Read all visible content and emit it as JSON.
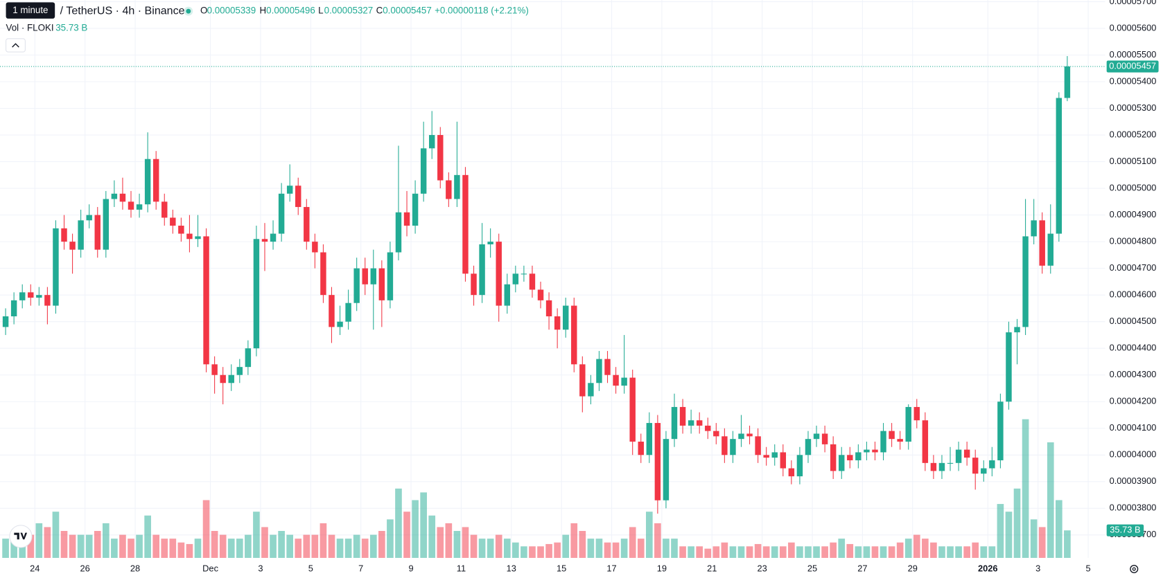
{
  "legend": {
    "tooltip": "1 minute",
    "symbol": "/ TetherUS · 4h · Binance",
    "o_key": "O",
    "o": "0.00005339",
    "h_key": "H",
    "h": "0.00005496",
    "l_key": "L",
    "l": "0.00005327",
    "c_key": "C",
    "c": "0.00005457",
    "change": "+0.00000118 (+2.21%)",
    "vol_title": "Vol · FLOKI",
    "vol": "35.73 B"
  },
  "chart_data": {
    "type": "candlestick",
    "up_color": "#22ab94",
    "down_color": "#f23645",
    "volume_up_color": "rgba(34,171,148,0.5)",
    "volume_down_color": "rgba(242,54,69,0.5)",
    "grid": true,
    "xlim": [
      -0.17,
      132.03
    ],
    "xticks": [
      {
        "value": 4,
        "label": "24"
      },
      {
        "value": 10,
        "label": "26"
      },
      {
        "value": 16,
        "label": "28"
      },
      {
        "value": 25,
        "label": "Dec"
      },
      {
        "value": 31,
        "label": "3"
      },
      {
        "value": 37,
        "label": "5"
      },
      {
        "value": 43,
        "label": "7"
      },
      {
        "value": 49,
        "label": "9"
      },
      {
        "value": 55,
        "label": "11"
      },
      {
        "value": 61,
        "label": "13"
      },
      {
        "value": 67,
        "label": "15"
      },
      {
        "value": 73,
        "label": "17"
      },
      {
        "value": 79,
        "label": "19"
      },
      {
        "value": 85,
        "label": "21"
      },
      {
        "value": 91,
        "label": "23"
      },
      {
        "value": 97,
        "label": "25"
      },
      {
        "value": 103,
        "label": "27"
      },
      {
        "value": 109,
        "label": "29"
      },
      {
        "value": 118,
        "label": "2026"
      },
      {
        "value": 124,
        "label": "3"
      },
      {
        "value": 130,
        "label": "5"
      }
    ],
    "ylim": [
      3.614e-05,
      5.706e-05
    ],
    "yticks": [
      {
        "value": 3.7e-05,
        "label": "0.00003700"
      },
      {
        "value": 3.8e-05,
        "label": "0.00003800"
      },
      {
        "value": 3.9e-05,
        "label": "0.00003900"
      },
      {
        "value": 4e-05,
        "label": "0.00004000"
      },
      {
        "value": 4.1e-05,
        "label": "0.00004100"
      },
      {
        "value": 4.2e-05,
        "label": "0.00004200"
      },
      {
        "value": 4.3e-05,
        "label": "0.00004300"
      },
      {
        "value": 4.4e-05,
        "label": "0.00004400"
      },
      {
        "value": 4.5e-05,
        "label": "0.00004500"
      },
      {
        "value": 4.6e-05,
        "label": "0.00004600"
      },
      {
        "value": 4.7e-05,
        "label": "0.00004700"
      },
      {
        "value": 4.8e-05,
        "label": "0.00004800"
      },
      {
        "value": 4.9e-05,
        "label": "0.00004900"
      },
      {
        "value": 5e-05,
        "label": "0.00005000"
      },
      {
        "value": 5.1e-05,
        "label": "0.00005100"
      },
      {
        "value": 5.2e-05,
        "label": "0.00005200"
      },
      {
        "value": 5.3e-05,
        "label": "0.00005300"
      },
      {
        "value": 5.4e-05,
        "label": "0.00005400"
      },
      {
        "value": 5.5e-05,
        "label": "0.00005500"
      },
      {
        "value": 5.6e-05,
        "label": "0.00005600"
      },
      {
        "value": 5.7e-05,
        "label": "0.00005700"
      }
    ],
    "volume_ylim": [
      0,
      200
    ],
    "price_tag": {
      "value": 5.457e-05,
      "label": "0.00005457"
    },
    "volume_tag": {
      "value": 35.73,
      "label": "35.73 B"
    },
    "open": [
      4.48e-05,
      4.52e-05,
      4.58e-05,
      4.61e-05,
      4.59e-05,
      4.6e-05,
      4.56e-05,
      4.85e-05,
      4.8e-05,
      4.77e-05,
      4.88e-05,
      4.9e-05,
      4.77e-05,
      4.96e-05,
      4.98e-05,
      4.95e-05,
      4.92e-05,
      4.94e-05,
      5.11e-05,
      4.95e-05,
      4.89e-05,
      4.86e-05,
      4.83e-05,
      4.81e-05,
      4.82e-05,
      4.34e-05,
      4.3e-05,
      4.27e-05,
      4.3e-05,
      4.33e-05,
      4.4e-05,
      4.81e-05,
      4.8e-05,
      4.83e-05,
      4.98e-05,
      5.01e-05,
      4.93e-05,
      4.8e-05,
      4.76e-05,
      4.6e-05,
      4.48e-05,
      4.5e-05,
      4.57e-05,
      4.7e-05,
      4.64e-05,
      4.7e-05,
      4.58e-05,
      4.76e-05,
      4.91e-05,
      4.86e-05,
      4.98e-05,
      5.15e-05,
      5.2e-05,
      5.03e-05,
      4.96e-05,
      5.05e-05,
      4.68e-05,
      4.6e-05,
      4.79e-05,
      4.8e-05,
      4.56e-05,
      4.64e-05,
      4.68e-05,
      4.68e-05,
      4.62e-05,
      4.58e-05,
      4.52e-05,
      4.47e-05,
      4.56e-05,
      4.34e-05,
      4.22e-05,
      4.27e-05,
      4.36e-05,
      4.3e-05,
      4.26e-05,
      4.29e-05,
      4.05e-05,
      4e-05,
      4.12e-05,
      3.83e-05,
      4.06e-05,
      4.18e-05,
      4.11e-05,
      4.13e-05,
      4.11e-05,
      4.09e-05,
      4.07e-05,
      4e-05,
      4.06e-05,
      4.08e-05,
      4.07e-05,
      4e-05,
      3.99e-05,
      4.01e-05,
      3.95e-05,
      3.92e-05,
      4e-05,
      4.06e-05,
      4.08e-05,
      4.04e-05,
      3.94e-05,
      4e-05,
      3.98e-05,
      4.01e-05,
      4.02e-05,
      4.01e-05,
      4.09e-05,
      4.06e-05,
      4.05e-05,
      4.18e-05,
      4.13e-05,
      3.97e-05,
      3.94e-05,
      3.97e-05,
      3.97e-05,
      4.02e-05,
      3.99e-05,
      3.93e-05,
      3.95e-05,
      3.98e-05,
      4.2e-05,
      4.46e-05,
      4.48e-05,
      4.82e-05,
      4.88e-05,
      4.71e-05,
      4.83e-05,
      5.339e-05
    ],
    "high": [
      4.55e-05,
      4.61e-05,
      4.64e-05,
      4.64e-05,
      4.63e-05,
      4.63e-05,
      4.88e-05,
      4.9e-05,
      4.83e-05,
      4.92e-05,
      4.94e-05,
      4.93e-05,
      4.99e-05,
      5.03e-05,
      5.04e-05,
      4.99e-05,
      4.98e-05,
      5.21e-05,
      5.14e-05,
      4.98e-05,
      4.92e-05,
      4.89e-05,
      4.9e-05,
      4.9e-05,
      4.85e-05,
      4.37e-05,
      4.33e-05,
      4.34e-05,
      4.36e-05,
      4.43e-05,
      4.86e-05,
      4.87e-05,
      4.88e-05,
      5.02e-05,
      5.09e-05,
      5.04e-05,
      4.96e-05,
      4.83e-05,
      4.79e-05,
      4.63e-05,
      4.56e-05,
      4.62e-05,
      4.74e-05,
      4.74e-05,
      4.77e-05,
      4.73e-05,
      4.8e-05,
      5.16e-05,
      4.99e-05,
      5.03e-05,
      5.25e-05,
      5.29e-05,
      5.23e-05,
      5.06e-05,
      5.25e-05,
      5.08e-05,
      4.71e-05,
      4.87e-05,
      4.85e-05,
      4.83e-05,
      4.68e-05,
      4.71e-05,
      4.71e-05,
      4.71e-05,
      4.65e-05,
      4.61e-05,
      4.55e-05,
      4.59e-05,
      4.59e-05,
      4.37e-05,
      4.3e-05,
      4.39e-05,
      4.39e-05,
      4.33e-05,
      4.45e-05,
      4.32e-05,
      4.08e-05,
      4.16e-05,
      4.15e-05,
      4.09e-05,
      4.23e-05,
      4.21e-05,
      4.17e-05,
      4.16e-05,
      4.14e-05,
      4.12e-05,
      4.1e-05,
      4.09e-05,
      4.15e-05,
      4.11e-05,
      4.1e-05,
      4.03e-05,
      4.04e-05,
      4.04e-05,
      3.98e-05,
      4.03e-05,
      4.09e-05,
      4.11e-05,
      4.11e-05,
      4.07e-05,
      4.03e-05,
      4.03e-05,
      4.04e-05,
      4.05e-05,
      4.05e-05,
      4.12e-05,
      4.12e-05,
      4.09e-05,
      4.19e-05,
      4.21e-05,
      4.16e-05,
      4e-05,
      4e-05,
      4.03e-05,
      4.05e-05,
      4.05e-05,
      4.02e-05,
      3.98e-05,
      4.03e-05,
      4.23e-05,
      4.5e-05,
      4.51e-05,
      4.96e-05,
      4.96e-05,
      4.91e-05,
      4.94e-05,
      5.36e-05,
      5.496e-05
    ],
    "low": [
      4.45e-05,
      4.49e-05,
      4.55e-05,
      4.56e-05,
      4.56e-05,
      4.49e-05,
      4.53e-05,
      4.77e-05,
      4.68e-05,
      4.74e-05,
      4.85e-05,
      4.74e-05,
      4.74e-05,
      4.93e-05,
      4.92e-05,
      4.89e-05,
      4.89e-05,
      4.91e-05,
      4.92e-05,
      4.86e-05,
      4.83e-05,
      4.8e-05,
      4.76e-05,
      4.78e-05,
      4.31e-05,
      4.23e-05,
      4.19e-05,
      4.24e-05,
      4.27e-05,
      4.3e-05,
      4.37e-05,
      4.69e-05,
      4.77e-05,
      4.8e-05,
      4.95e-05,
      4.9e-05,
      4.77e-05,
      4.7e-05,
      4.57e-05,
      4.42e-05,
      4.45e-05,
      4.47e-05,
      4.54e-05,
      4.6e-05,
      4.47e-05,
      4.48e-05,
      4.55e-05,
      4.73e-05,
      4.82e-05,
      4.83e-05,
      4.95e-05,
      5.11e-05,
      5e-05,
      4.93e-05,
      4.93e-05,
      4.65e-05,
      4.56e-05,
      4.57e-05,
      4.74e-05,
      4.5e-05,
      4.53e-05,
      4.61e-05,
      4.65e-05,
      4.59e-05,
      4.55e-05,
      4.47e-05,
      4.4e-05,
      4.44e-05,
      4.31e-05,
      4.16e-05,
      4.19e-05,
      4.24e-05,
      4.27e-05,
      4.23e-05,
      4.23e-05,
      4e-05,
      3.97e-05,
      3.97e-05,
      3.78e-05,
      3.8e-05,
      4.03e-05,
      4.08e-05,
      4.08e-05,
      4.08e-05,
      4.06e-05,
      4.04e-05,
      3.97e-05,
      3.97e-05,
      4.03e-05,
      4.04e-05,
      3.97e-05,
      3.96e-05,
      3.96e-05,
      3.92e-05,
      3.89e-05,
      3.89e-05,
      3.97e-05,
      4.03e-05,
      4.01e-05,
      3.91e-05,
      3.91e-05,
      3.95e-05,
      3.95e-05,
      3.98e-05,
      3.98e-05,
      3.98e-05,
      4.03e-05,
      4.02e-05,
      4.02e-05,
      4.1e-05,
      3.94e-05,
      3.91e-05,
      3.91e-05,
      3.94e-05,
      3.94e-05,
      3.96e-05,
      3.87e-05,
      3.9e-05,
      3.92e-05,
      3.95e-05,
      4.17e-05,
      4.34e-05,
      4.45e-05,
      4.79e-05,
      4.68e-05,
      4.68e-05,
      4.8e-05,
      5.327e-05
    ],
    "close": [
      4.52e-05,
      4.58e-05,
      4.61e-05,
      4.59e-05,
      4.6e-05,
      4.56e-05,
      4.85e-05,
      4.8e-05,
      4.77e-05,
      4.88e-05,
      4.9e-05,
      4.77e-05,
      4.96e-05,
      4.98e-05,
      4.95e-05,
      4.92e-05,
      4.94e-05,
      5.11e-05,
      4.95e-05,
      4.89e-05,
      4.86e-05,
      4.83e-05,
      4.81e-05,
      4.82e-05,
      4.34e-05,
      4.3e-05,
      4.27e-05,
      4.3e-05,
      4.33e-05,
      4.4e-05,
      4.81e-05,
      4.8e-05,
      4.83e-05,
      4.98e-05,
      5.01e-05,
      4.93e-05,
      4.8e-05,
      4.76e-05,
      4.6e-05,
      4.48e-05,
      4.5e-05,
      4.57e-05,
      4.7e-05,
      4.64e-05,
      4.7e-05,
      4.58e-05,
      4.76e-05,
      4.91e-05,
      4.86e-05,
      4.98e-05,
      5.15e-05,
      5.2e-05,
      5.03e-05,
      4.96e-05,
      5.05e-05,
      4.68e-05,
      4.6e-05,
      4.79e-05,
      4.8e-05,
      4.56e-05,
      4.64e-05,
      4.68e-05,
      4.68e-05,
      4.62e-05,
      4.58e-05,
      4.52e-05,
      4.47e-05,
      4.56e-05,
      4.34e-05,
      4.22e-05,
      4.27e-05,
      4.36e-05,
      4.3e-05,
      4.26e-05,
      4.29e-05,
      4.05e-05,
      4e-05,
      4.12e-05,
      3.83e-05,
      4.06e-05,
      4.18e-05,
      4.11e-05,
      4.13e-05,
      4.11e-05,
      4.09e-05,
      4.07e-05,
      4e-05,
      4.06e-05,
      4.08e-05,
      4.07e-05,
      4e-05,
      3.99e-05,
      4.01e-05,
      3.95e-05,
      3.92e-05,
      4e-05,
      4.06e-05,
      4.08e-05,
      4.04e-05,
      3.94e-05,
      4e-05,
      3.98e-05,
      4.01e-05,
      4.02e-05,
      4.01e-05,
      4.09e-05,
      4.06e-05,
      4.05e-05,
      4.18e-05,
      4.13e-05,
      3.97e-05,
      3.94e-05,
      3.97e-05,
      3.97e-05,
      4.02e-05,
      3.99e-05,
      3.93e-05,
      3.95e-05,
      3.98e-05,
      4.2e-05,
      4.46e-05,
      4.48e-05,
      4.82e-05,
      4.88e-05,
      4.71e-05,
      4.83e-05,
      5.339e-05,
      5.457e-05
    ],
    "volume": [
      25,
      28,
      30,
      30,
      45,
      40,
      60,
      35,
      30,
      30,
      30,
      35,
      45,
      25,
      30,
      25,
      30,
      55,
      30,
      25,
      25,
      20,
      18,
      25,
      75,
      35,
      30,
      25,
      25,
      30,
      60,
      40,
      30,
      35,
      30,
      25,
      30,
      30,
      45,
      30,
      25,
      25,
      30,
      25,
      30,
      35,
      50,
      90,
      60,
      75,
      85,
      55,
      40,
      45,
      35,
      40,
      30,
      25,
      25,
      30,
      25,
      20,
      15,
      15,
      15,
      18,
      20,
      30,
      45,
      35,
      25,
      25,
      20,
      20,
      25,
      40,
      25,
      60,
      45,
      25,
      25,
      15,
      15,
      15,
      12,
      15,
      20,
      15,
      15,
      15,
      18,
      15,
      15,
      15,
      20,
      15,
      15,
      15,
      15,
      20,
      25,
      18,
      15,
      15,
      15,
      15,
      15,
      20,
      25,
      30,
      25,
      20,
      15,
      15,
      15,
      15,
      20,
      15,
      15,
      70,
      60,
      90,
      180,
      50,
      40,
      150,
      75,
      35.73
    ]
  }
}
